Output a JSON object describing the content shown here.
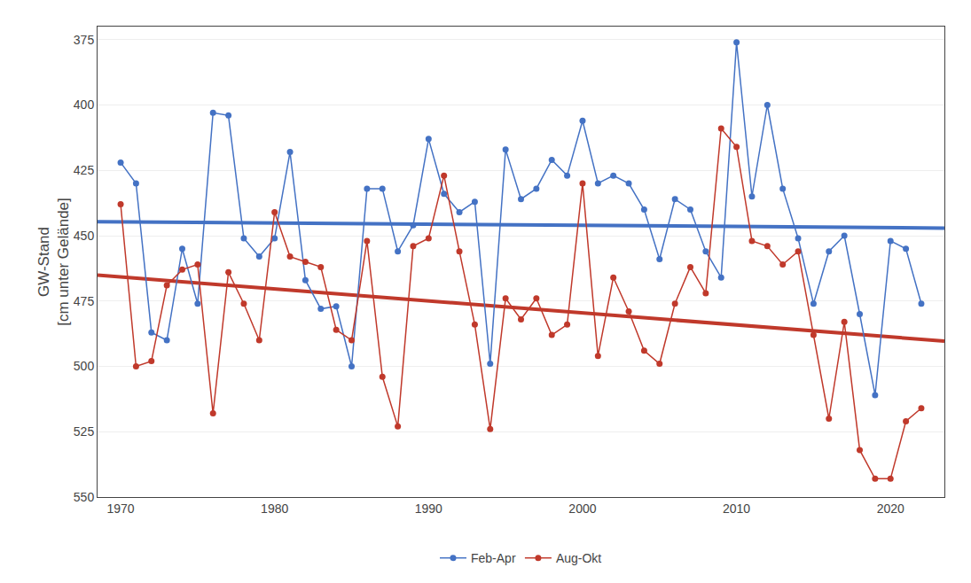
{
  "chart_data": {
    "type": "line",
    "ylabel": "GW-Stand\n[cm unter Gelände]",
    "xlim": [
      1968.5,
      2023.5
    ],
    "ylim": [
      550,
      370
    ],
    "xticks": [
      1970,
      1980,
      1990,
      2000,
      2010,
      2020
    ],
    "yticks": [
      375,
      400,
      425,
      450,
      475,
      500,
      525,
      550
    ],
    "grid": "y",
    "legend": "bottom",
    "series": [
      {
        "type": "line",
        "color": "#4472C4",
        "line_style": "solid",
        "x": [
          1968.5,
          2023.5
        ],
        "values": [
          444.62,
          447.08
        ]
      },
      {
        "type": "line",
        "color": "#C0392B",
        "line_style": "solid",
        "x": [
          1968.5,
          2023.5
        ],
        "values": [
          465.1,
          490.34
        ]
      },
      {
        "name": "Feb-Apr",
        "color": "#4472C4",
        "marker": "circle",
        "line_style": "solid",
        "x": [
          1970,
          1971,
          1972,
          1973,
          1974,
          1975,
          1976,
          1977,
          1978,
          1979,
          1980,
          1981,
          1982,
          1983,
          1984,
          1985,
          1986,
          1987,
          1988,
          1989,
          1990,
          1991,
          1992,
          1993,
          1994,
          1995,
          1996,
          1997,
          1998,
          1999,
          2000,
          2001,
          2002,
          2003,
          2004,
          2005,
          2006,
          2007,
          2008,
          2009,
          2010,
          2011,
          2012,
          2013,
          2014,
          2015,
          2016,
          2017,
          2018,
          2019,
          2020,
          2021,
          2022
        ],
        "values": [
          422,
          430,
          487,
          490,
          455,
          476,
          403,
          404,
          451,
          458,
          451,
          418,
          467,
          478,
          477,
          500,
          432,
          432,
          456,
          446,
          413,
          434,
          441,
          437,
          499,
          417,
          436,
          432,
          421,
          427,
          406,
          430,
          427,
          430,
          440,
          459,
          436,
          440,
          456,
          466,
          376,
          435,
          400,
          432,
          451,
          476,
          456,
          450,
          480,
          511,
          452,
          455,
          476
        ]
      },
      {
        "name": "Aug-Okt",
        "color": "#C0392B",
        "marker": "circle",
        "line_style": "solid",
        "x": [
          1970,
          1971,
          1972,
          1973,
          1974,
          1975,
          1976,
          1977,
          1978,
          1979,
          1980,
          1981,
          1982,
          1983,
          1984,
          1985,
          1986,
          1987,
          1988,
          1989,
          1990,
          1991,
          1992,
          1993,
          1994,
          1995,
          1996,
          1997,
          1998,
          1999,
          2000,
          2001,
          2002,
          2003,
          2004,
          2005,
          2006,
          2007,
          2008,
          2009,
          2010,
          2011,
          2012,
          2013,
          2014,
          2015,
          2016,
          2017,
          2018,
          2019,
          2020,
          2021,
          2022
        ],
        "values": [
          438,
          500,
          498,
          469,
          463,
          461,
          518,
          464,
          476,
          490,
          441,
          458,
          460,
          462,
          486,
          490,
          452,
          504,
          523,
          454,
          451,
          427,
          456,
          484,
          524,
          474,
          482,
          474,
          488,
          484,
          430,
          496,
          466,
          479,
          494,
          499,
          476,
          462,
          472,
          409,
          416,
          452,
          454,
          461,
          456,
          488,
          520,
          483,
          532,
          543,
          543,
          521,
          516
        ]
      }
    ]
  }
}
